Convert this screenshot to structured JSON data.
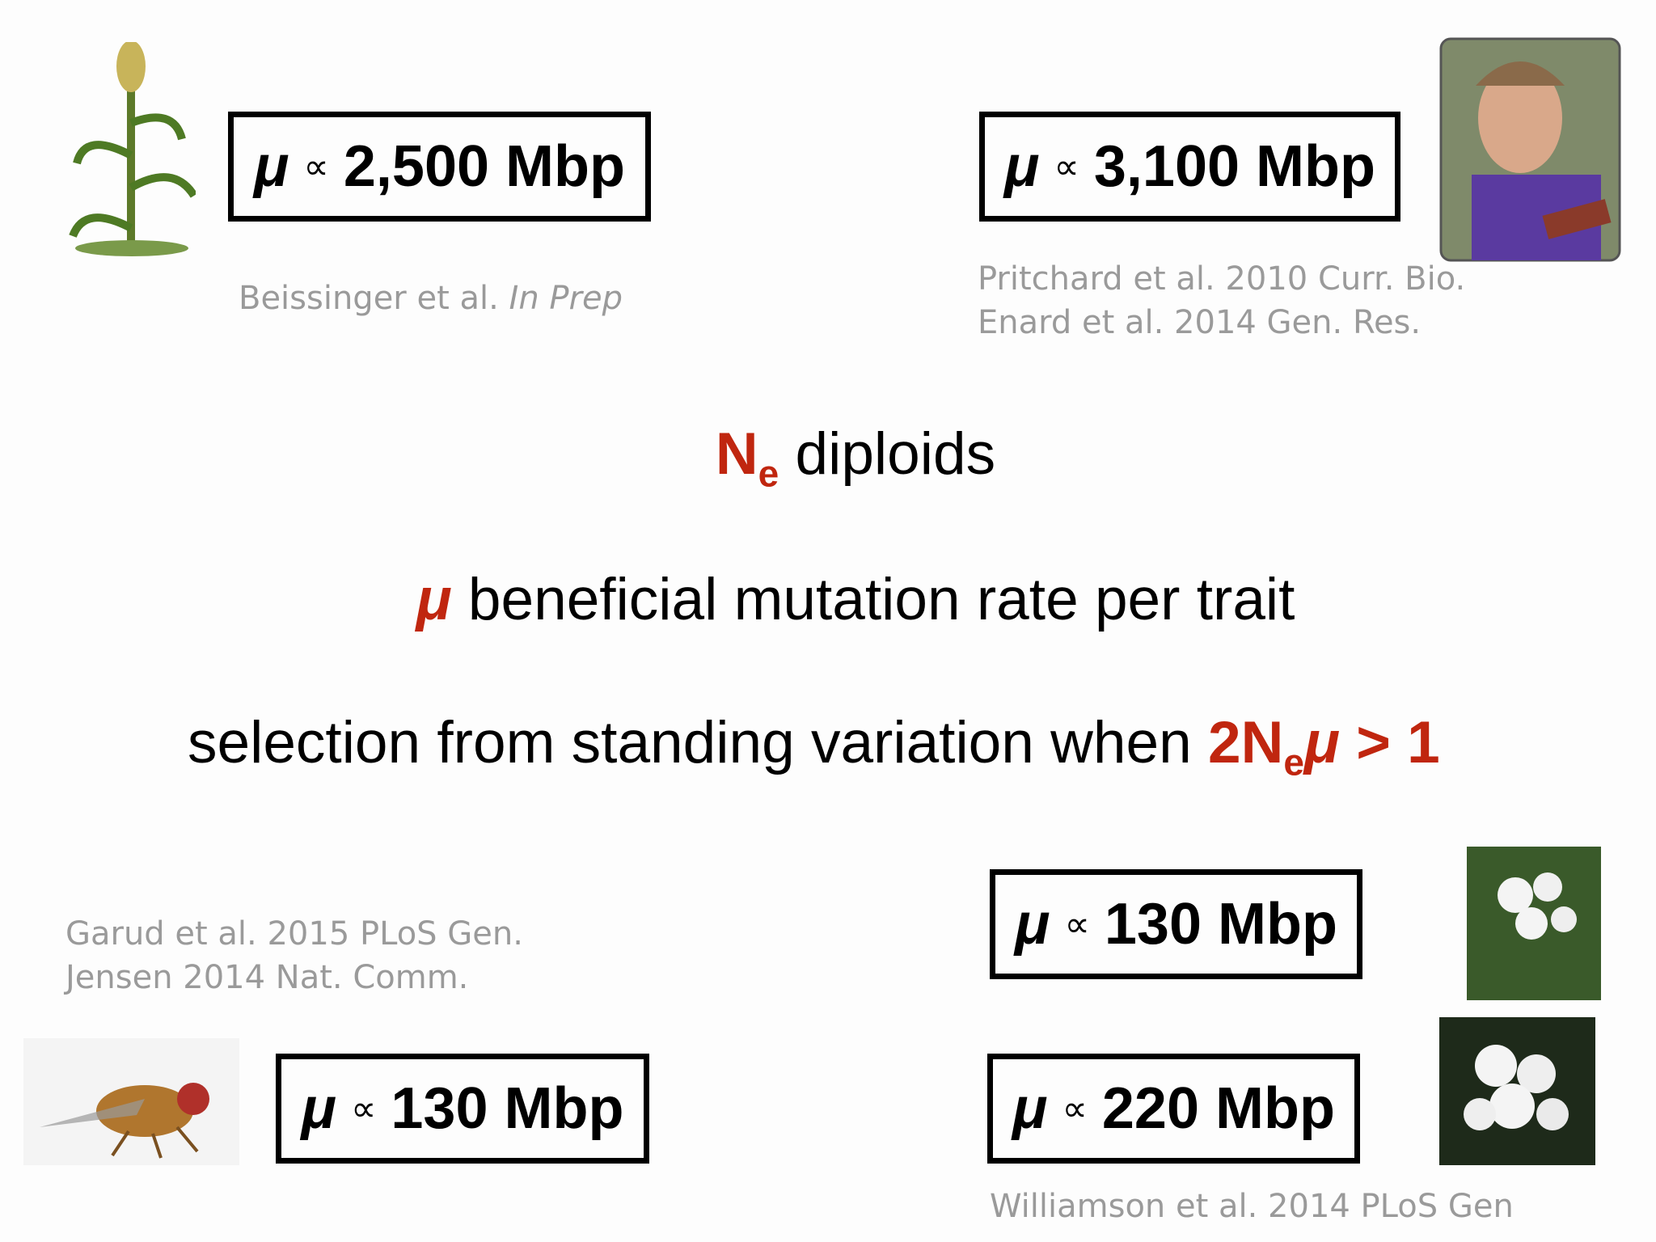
{
  "symbol": "μ",
  "relation": "∝",
  "boxes": [
    {
      "value": "2,500 Mbp"
    },
    {
      "value": "3,100 Mbp"
    },
    {
      "value": "130 Mbp"
    },
    {
      "value": "130 Mbp"
    },
    {
      "value": "220 Mbp"
    }
  ],
  "citations": {
    "maize": {
      "authors": "Beissinger et al.",
      "status": "In Prep"
    },
    "human": [
      "Pritchard et al. 2010 Curr. Bio.",
      "Enard et al. 2014 Gen. Res."
    ],
    "fly": [
      "Garud et al. 2015 PLoS Gen.",
      "Jensen 2014 Nat. Comm."
    ],
    "arabidopsis": "Williamson et al. 2014 PLoS Gen"
  },
  "center": {
    "line1": {
      "main": "N",
      "sub": "e",
      "rest": "diploids"
    },
    "line2": {
      "rest": "beneficial mutation rate per trait"
    },
    "line3": {
      "text": "selection from standing variation when",
      "formula_a": "2N",
      "formula_sub": "e",
      "formula_b": "> 1"
    }
  }
}
